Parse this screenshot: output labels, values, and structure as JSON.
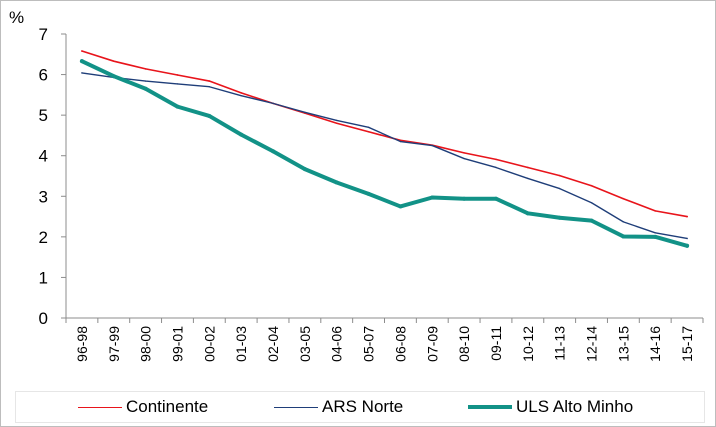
{
  "chart_data": {
    "type": "line",
    "y_unit_label": "%",
    "ylim": [
      0,
      7
    ],
    "yticks": [
      0,
      1,
      2,
      3,
      4,
      5,
      6,
      7
    ],
    "grid": false,
    "legend_position": "bottom",
    "categories": [
      "96-98",
      "97-99",
      "98-00",
      "99-01",
      "00-02",
      "01-03",
      "02-04",
      "03-05",
      "04-06",
      "05-07",
      "06-08",
      "07-09",
      "08-10",
      "09-11",
      "10-12",
      "11-13",
      "12-14",
      "13-15",
      "14-16",
      "15-17"
    ],
    "series": [
      {
        "name": "Continente",
        "color": "#e8141b",
        "width": 1.6,
        "values": [
          6.58,
          6.33,
          6.14,
          5.99,
          5.84,
          5.55,
          5.29,
          5.05,
          4.8,
          4.59,
          4.38,
          4.26,
          4.07,
          3.91,
          3.71,
          3.51,
          3.26,
          2.94,
          2.64,
          2.5
        ]
      },
      {
        "name": "ARS Norte",
        "color": "#1f3e79",
        "width": 1.4,
        "values": [
          6.04,
          5.93,
          5.84,
          5.77,
          5.7,
          5.48,
          5.29,
          5.07,
          4.87,
          4.7,
          4.35,
          4.25,
          3.93,
          3.71,
          3.44,
          3.19,
          2.84,
          2.37,
          2.1,
          1.96
        ]
      },
      {
        "name": "ULS Alto Minho",
        "color": "#129287",
        "width": 4,
        "values": [
          6.33,
          5.96,
          5.65,
          5.21,
          4.98,
          4.52,
          4.11,
          3.67,
          3.34,
          3.06,
          2.75,
          2.97,
          2.94,
          2.94,
          2.58,
          2.47,
          2.4,
          2.01,
          2.0,
          1.78
        ]
      }
    ]
  }
}
